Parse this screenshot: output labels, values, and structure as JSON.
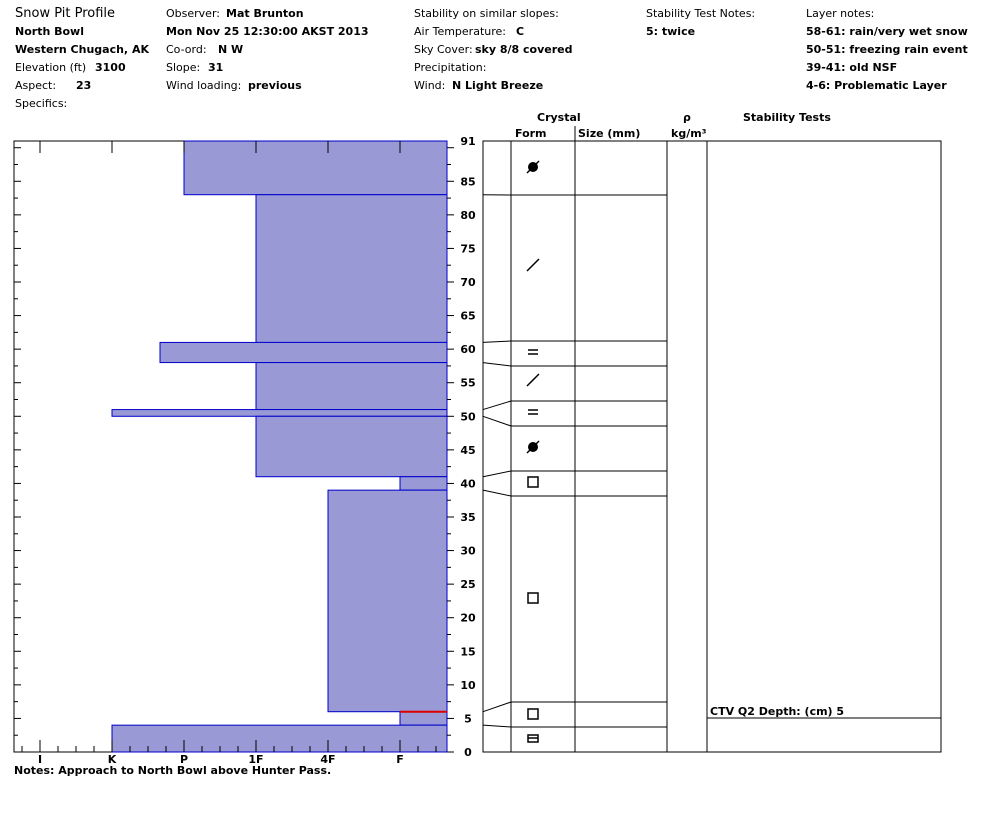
{
  "header": {
    "title": "Snow Pit Profile",
    "location": "North Bowl",
    "region": "Western Chugach, AK",
    "elevation_label": "Elevation (ft)",
    "elevation_value": "3100",
    "aspect_label": "Aspect:",
    "aspect_value": "23",
    "specifics_label": "Specifics:",
    "observer_label": "Observer:",
    "observer_value": "Mat Brunton",
    "datetime": "Mon Nov 25 12:30:00 AKST 2013",
    "coord_label": "Co-ord:",
    "coord_value": "N  W",
    "slope_label": "Slope:",
    "slope_value": "31",
    "wind_loading_label": "Wind loading:",
    "wind_loading_value": "previous",
    "stability_similar_label": "Stability on similar slopes:",
    "air_temp_label": "Air Temperature:",
    "air_temp_value": "C",
    "sky_label": "Sky Cover:",
    "sky_value": "sky 8/8 covered",
    "precip_label": "Precipitation:",
    "wind_label": "Wind:",
    "wind_value": "N Light Breeze",
    "stability_notes_label": "Stability Test Notes:",
    "stability_notes_value": "5: twice",
    "layer_notes_label": "Layer notes:",
    "layer_notes": [
      "58-61: rain/very wet snow",
      "50-51: freezing rain event",
      "39-41: old NSF",
      "4-6: Problematic Layer"
    ]
  },
  "columns": {
    "crystal": "Crystal",
    "form": "Form",
    "size": "Size (mm)",
    "rho": "ρ",
    "density_unit": "kg/m³",
    "stability_tests": "Stability Tests"
  },
  "notes": "Notes:  Approach to North Bowl above Hunter Pass.",
  "chart_data": {
    "type": "bar",
    "title": "Snow Pit Profile",
    "y_range": [
      0,
      91
    ],
    "y_ticks": [
      0,
      5,
      10,
      15,
      20,
      25,
      30,
      35,
      40,
      45,
      50,
      55,
      60,
      65,
      70,
      75,
      80,
      85,
      91
    ],
    "hardness_ticks": [
      "I",
      "K",
      "P",
      "1F",
      "4F",
      "F"
    ],
    "fill_color": "#9999d6",
    "edge_color": "#0000cc",
    "flag_color": "#dd0000",
    "hardness_layers": [
      {
        "bottom": 83,
        "top": 91,
        "hardness": "P"
      },
      {
        "bottom": 61,
        "top": 83,
        "hardness": "1F"
      },
      {
        "bottom": 58,
        "top": 61,
        "hardness": "P+"
      },
      {
        "bottom": 51,
        "top": 58,
        "hardness": "1F"
      },
      {
        "bottom": 50,
        "top": 51,
        "hardness": "K"
      },
      {
        "bottom": 41,
        "top": 50,
        "hardness": "1F"
      },
      {
        "bottom": 39,
        "top": 41,
        "hardness": "F"
      },
      {
        "bottom": 6,
        "top": 39,
        "hardness": "4F"
      },
      {
        "bottom": 4,
        "top": 6,
        "hardness": "F"
      },
      {
        "bottom": 0,
        "top": 4,
        "hardness": "K"
      }
    ],
    "crystal_forms": [
      {
        "depth": 87,
        "form": "melt-forms-icon"
      },
      {
        "depth": 73,
        "form": "decomposing-icon"
      },
      {
        "depth": 60,
        "form": "ice-layer-icon"
      },
      {
        "depth": 56,
        "form": "decomposing-icon"
      },
      {
        "depth": 51,
        "form": "ice-layer-icon"
      },
      {
        "depth": 46,
        "form": "melt-forms-icon"
      },
      {
        "depth": 40,
        "form": "faceted-icon"
      },
      {
        "depth": 23,
        "form": "faceted-icon"
      },
      {
        "depth": 6,
        "form": "faceted-icon"
      },
      {
        "depth": 2,
        "form": "mixed-forms-icon"
      }
    ],
    "stability_test": {
      "label": "CTV Q2 Depth: (cm) 5",
      "depth": 5
    }
  }
}
